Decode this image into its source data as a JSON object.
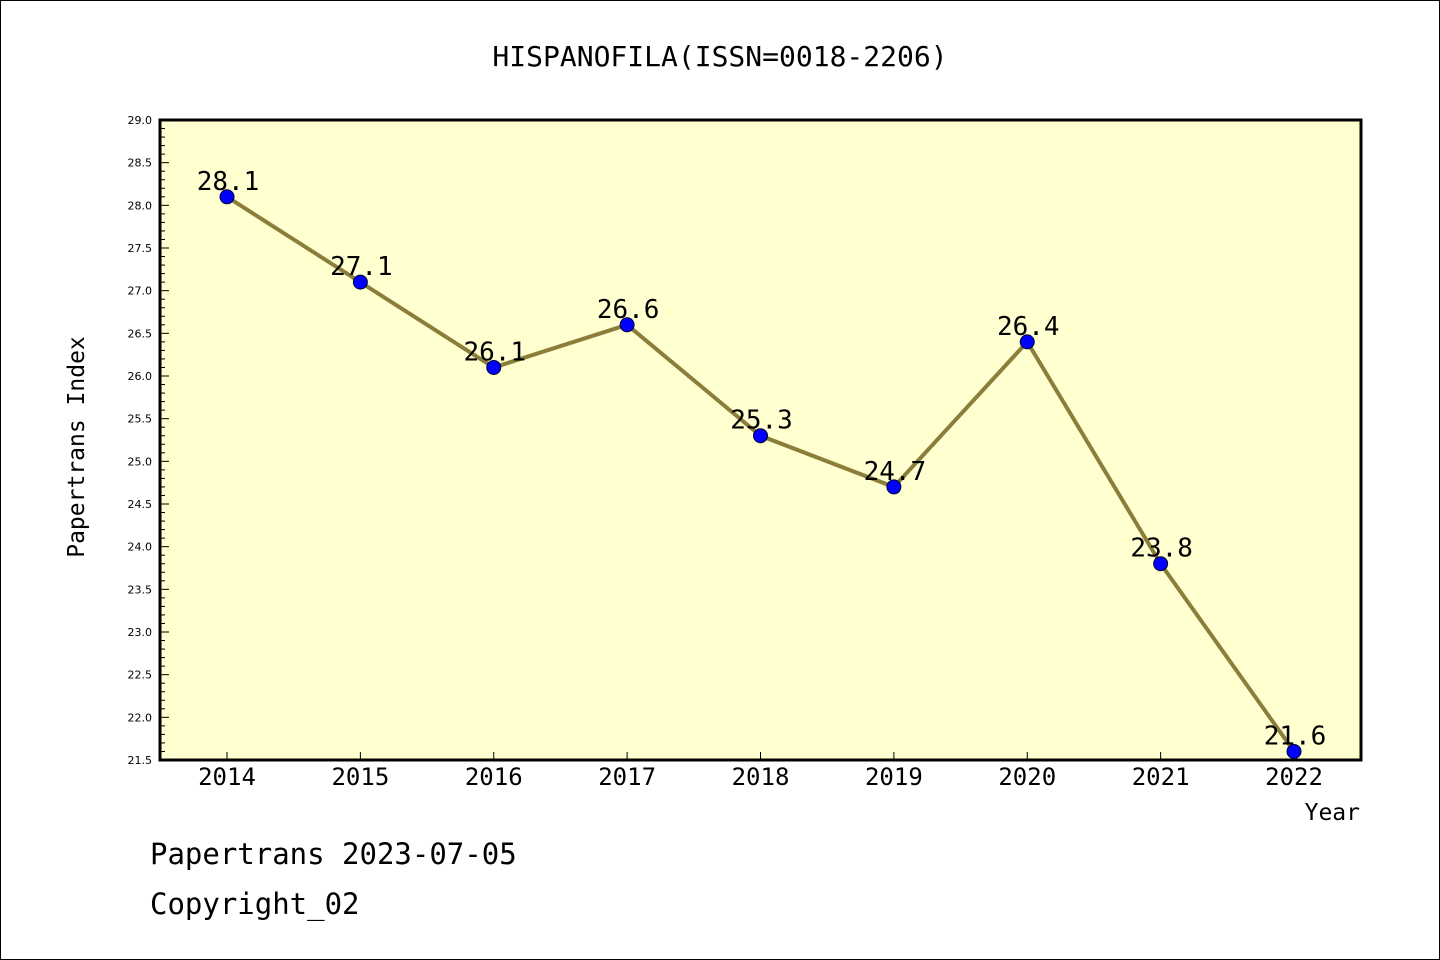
{
  "chart_data": {
    "type": "line",
    "title": "HISPANOFILA(ISSN=0018-2206)",
    "xlabel": "Year",
    "ylabel": "Papertrans Index",
    "categories": [
      "2014",
      "2015",
      "2016",
      "2017",
      "2018",
      "2019",
      "2020",
      "2021",
      "2022"
    ],
    "series": [
      {
        "values": [
          28.1,
          27.1,
          26.1,
          26.6,
          25.3,
          24.7,
          26.4,
          23.8,
          21.6
        ],
        "line_color": "#8b7d3a",
        "marker_color": "#0000ff"
      }
    ],
    "data_labels": [
      "28.1",
      "27.1",
      "26.1",
      "26.6",
      "25.3",
      "24.7",
      "26.4",
      "23.8",
      "21.6"
    ],
    "ylim": [
      21.5,
      29.0
    ],
    "y_ticks": [
      "21.5",
      "22.0",
      "22.5",
      "23.0",
      "23.5",
      "24.0",
      "24.5",
      "25.0",
      "25.5",
      "26.0",
      "26.5",
      "27.0",
      "27.5",
      "28.0",
      "28.5",
      "29.0"
    ],
    "grid": false,
    "plot_background": "#ffffd0"
  },
  "footer": {
    "line1": "Papertrans 2023-07-05",
    "line2": "Copyright_02"
  }
}
